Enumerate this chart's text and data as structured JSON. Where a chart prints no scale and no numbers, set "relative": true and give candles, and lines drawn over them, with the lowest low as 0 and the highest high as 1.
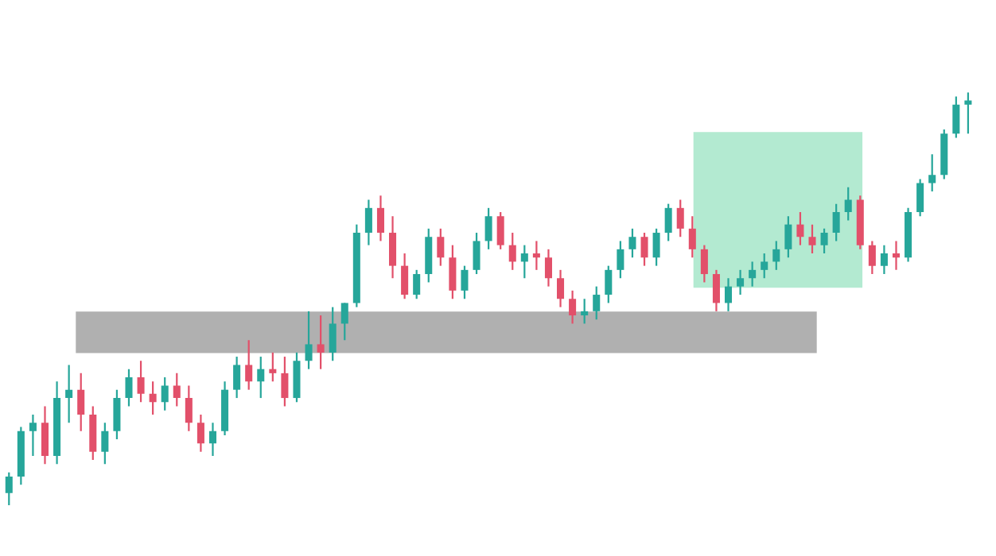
{
  "chart_data": {
    "type": "candlestick",
    "relative": true,
    "categories": [
      null,
      null,
      null,
      null,
      null,
      null,
      null,
      null,
      null,
      null,
      null,
      null,
      null,
      null,
      null,
      null,
      null,
      null,
      null,
      null,
      null,
      null,
      null,
      null,
      null,
      null,
      null,
      null,
      null,
      null,
      null,
      null,
      null,
      null,
      null,
      null,
      null,
      null,
      null,
      null,
      null,
      null,
      null,
      null,
      null,
      null,
      null,
      null,
      null,
      null,
      null,
      null,
      null,
      null,
      null,
      null,
      null,
      null,
      null,
      null,
      null,
      null,
      null,
      null,
      null,
      null,
      null,
      null,
      null,
      null,
      null,
      null,
      null,
      null,
      null,
      null,
      null,
      null,
      null,
      null,
      null
    ],
    "colors": [
      "#26a69a",
      "#26a69a",
      "#26a69a",
      "#e2506a",
      "#26a69a",
      "#26a69a",
      "#e2506a",
      "#e2506a",
      "#26a69a",
      "#26a69a",
      "#26a69a",
      "#e2506a",
      "#e2506a",
      "#26a69a",
      "#e2506a",
      "#e2506a",
      "#e2506a",
      "#26a69a",
      "#26a69a",
      "#26a69a",
      "#e2506a",
      "#26a69a",
      "#e2506a",
      "#e2506a",
      "#26a69a",
      "#26a69a",
      "#e2506a",
      "#26a69a",
      "#26a69a",
      "#26a69a",
      "#26a69a",
      "#e2506a",
      "#e2506a",
      "#e2506a",
      "#26a69a",
      "#26a69a",
      "#e2506a",
      "#e2506a",
      "#26a69a",
      "#26a69a",
      "#26a69a",
      "#e2506a",
      "#e2506a",
      "#26a69a",
      "#e2506a",
      "#e2506a",
      "#e2506a",
      "#e2506a",
      "#26a69a",
      "#26a69a",
      "#26a69a",
      "#26a69a",
      "#26a69a",
      "#e2506a",
      "#26a69a",
      "#26a69a",
      "#e2506a",
      "#e2506a",
      "#e2506a",
      "#e2506a",
      "#26a69a",
      "#26a69a",
      "#26a69a",
      "#26a69a",
      "#26a69a",
      "#26a69a",
      "#e2506a",
      "#e2506a",
      "#26a69a",
      "#26a69a",
      "#26a69a",
      "#e2506a",
      "#e2506a",
      "#26a69a",
      "#e2506a",
      "#26a69a",
      "#26a69a",
      "#26a69a",
      "#26a69a",
      "#26a69a",
      "#26a69a"
    ],
    "ohlc": [
      [
        0.03,
        0.08,
        0,
        0.07
      ],
      [
        0.07,
        0.19,
        0.05,
        0.18
      ],
      [
        0.18,
        0.22,
        0.12,
        0.2
      ],
      [
        0.2,
        0.24,
        0.1,
        0.12
      ],
      [
        0.12,
        0.3,
        0.1,
        0.26
      ],
      [
        0.26,
        0.34,
        0.2,
        0.28
      ],
      [
        0.28,
        0.32,
        0.18,
        0.22
      ],
      [
        0.22,
        0.24,
        0.11,
        0.13
      ],
      [
        0.13,
        0.2,
        0.1,
        0.18
      ],
      [
        0.18,
        0.28,
        0.16,
        0.26
      ],
      [
        0.26,
        0.33,
        0.24,
        0.31
      ],
      [
        0.31,
        0.35,
        0.25,
        0.27
      ],
      [
        0.27,
        0.3,
        0.22,
        0.25
      ],
      [
        0.25,
        0.31,
        0.23,
        0.29
      ],
      [
        0.29,
        0.32,
        0.24,
        0.26
      ],
      [
        0.26,
        0.29,
        0.18,
        0.2
      ],
      [
        0.2,
        0.22,
        0.13,
        0.15
      ],
      [
        0.15,
        0.2,
        0.12,
        0.18
      ],
      [
        0.18,
        0.3,
        0.17,
        0.28
      ],
      [
        0.28,
        0.36,
        0.26,
        0.34
      ],
      [
        0.34,
        0.4,
        0.28,
        0.3
      ],
      [
        0.3,
        0.36,
        0.26,
        0.33
      ],
      [
        0.33,
        0.37,
        0.3,
        0.32
      ],
      [
        0.32,
        0.36,
        0.24,
        0.26
      ],
      [
        0.26,
        0.37,
        0.25,
        0.35
      ],
      [
        0.35,
        0.47,
        0.33,
        0.39
      ],
      [
        0.39,
        0.46,
        0.33,
        0.37
      ],
      [
        0.37,
        0.48,
        0.35,
        0.44
      ],
      [
        0.44,
        0.49,
        0.4,
        0.49
      ],
      [
        0.49,
        0.68,
        0.48,
        0.66
      ],
      [
        0.66,
        0.74,
        0.63,
        0.72
      ],
      [
        0.72,
        0.75,
        0.64,
        0.66
      ],
      [
        0.66,
        0.7,
        0.55,
        0.58
      ],
      [
        0.58,
        0.61,
        0.5,
        0.51
      ],
      [
        0.51,
        0.57,
        0.5,
        0.56
      ],
      [
        0.56,
        0.67,
        0.54,
        0.65
      ],
      [
        0.65,
        0.67,
        0.58,
        0.6
      ],
      [
        0.6,
        0.63,
        0.5,
        0.52
      ],
      [
        0.52,
        0.58,
        0.5,
        0.57
      ],
      [
        0.57,
        0.66,
        0.56,
        0.64
      ],
      [
        0.64,
        0.72,
        0.62,
        0.7
      ],
      [
        0.7,
        0.71,
        0.62,
        0.63
      ],
      [
        0.63,
        0.66,
        0.57,
        0.59
      ],
      [
        0.59,
        0.63,
        0.55,
        0.61
      ],
      [
        0.61,
        0.64,
        0.57,
        0.6
      ],
      [
        0.6,
        0.62,
        0.53,
        0.55
      ],
      [
        0.55,
        0.57,
        0.48,
        0.5
      ],
      [
        0.5,
        0.52,
        0.44,
        0.46
      ],
      [
        0.46,
        0.5,
        0.44,
        0.47
      ],
      [
        0.47,
        0.53,
        0.45,
        0.51
      ],
      [
        0.51,
        0.58,
        0.49,
        0.57
      ],
      [
        0.57,
        0.64,
        0.55,
        0.62
      ],
      [
        0.62,
        0.67,
        0.6,
        0.65
      ],
      [
        0.65,
        0.66,
        0.58,
        0.6
      ],
      [
        0.6,
        0.67,
        0.58,
        0.66
      ],
      [
        0.66,
        0.73,
        0.64,
        0.72
      ],
      [
        0.72,
        0.74,
        0.65,
        0.67
      ],
      [
        0.67,
        0.7,
        0.6,
        0.62
      ],
      [
        0.62,
        0.63,
        0.54,
        0.56
      ],
      [
        0.56,
        0.57,
        0.47,
        0.49
      ],
      [
        0.49,
        0.55,
        0.47,
        0.53
      ],
      [
        0.53,
        0.57,
        0.51,
        0.55
      ],
      [
        0.55,
        0.59,
        0.53,
        0.57
      ],
      [
        0.57,
        0.61,
        0.55,
        0.59
      ],
      [
        0.59,
        0.64,
        0.57,
        0.62
      ],
      [
        0.62,
        0.7,
        0.6,
        0.68
      ],
      [
        0.68,
        0.71,
        0.63,
        0.65
      ],
      [
        0.65,
        0.68,
        0.61,
        0.63
      ],
      [
        0.63,
        0.67,
        0.61,
        0.66
      ],
      [
        0.66,
        0.73,
        0.64,
        0.71
      ],
      [
        0.71,
        0.77,
        0.69,
        0.74
      ],
      [
        0.74,
        0.75,
        0.62,
        0.63
      ],
      [
        0.63,
        0.64,
        0.56,
        0.58
      ],
      [
        0.58,
        0.63,
        0.56,
        0.61
      ],
      [
        0.61,
        0.64,
        0.57,
        0.6
      ],
      [
        0.6,
        0.72,
        0.59,
        0.71
      ],
      [
        0.71,
        0.79,
        0.7,
        0.78
      ],
      [
        0.78,
        0.85,
        0.76,
        0.8
      ],
      [
        0.8,
        0.91,
        0.79,
        0.9
      ],
      [
        0.9,
        0.99,
        0.89,
        0.97
      ],
      [
        0.97,
        1,
        0.9,
        0.98
      ]
    ],
    "grid": false,
    "legend": false
  }
}
